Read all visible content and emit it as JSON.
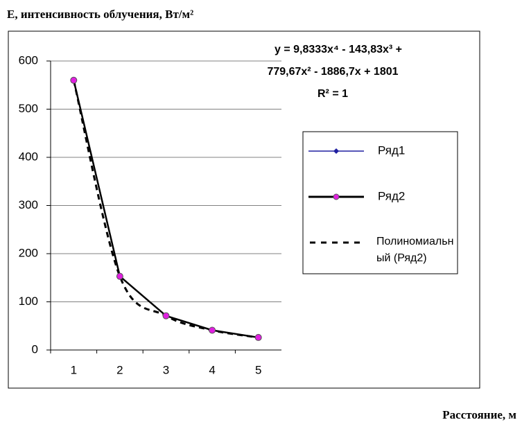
{
  "chart_data": {
    "type": "line",
    "title": "E, интенсивность облучения, Вт/м²",
    "x_label": "Расстояние, м",
    "categories": [
      "1",
      "2",
      "3",
      "4",
      "5"
    ],
    "series": [
      {
        "name": "Ряд1",
        "color": "#1f1fa0",
        "values": [
          560,
          153,
          71,
          41,
          26
        ]
      },
      {
        "name": "Ряд2",
        "color": "#000000",
        "marker_color": "#e020e0",
        "values": [
          560,
          153,
          71,
          41,
          26
        ]
      }
    ],
    "trendline": {
      "name": "Полиномиальный (Ряд2)",
      "series": 1,
      "equation": [
        "y = 9,8333x⁴ - 143,83x³ +",
        "779,67x² - 1886,7x + 1801",
        "R² = 1"
      ]
    },
    "ylim": [
      0,
      600
    ],
    "yticks": [
      0,
      100,
      200,
      300,
      400,
      500,
      600
    ],
    "grid": true
  }
}
